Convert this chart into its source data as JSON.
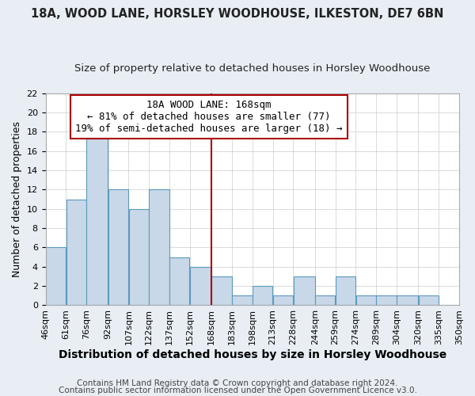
{
  "title": "18A, WOOD LANE, HORSLEY WOODHOUSE, ILKESTON, DE7 6BN",
  "subtitle": "Size of property relative to detached houses in Horsley Woodhouse",
  "xlabel": "Distribution of detached houses by size in Horsley Woodhouse",
  "ylabel": "Number of detached properties",
  "bin_edges": [
    46,
    61,
    76,
    92,
    107,
    122,
    137,
    152,
    168,
    183,
    198,
    213,
    228,
    244,
    259,
    274,
    289,
    304,
    320,
    335,
    350
  ],
  "bin_labels": [
    "46sqm",
    "61sqm",
    "76sqm",
    "92sqm",
    "107sqm",
    "122sqm",
    "137sqm",
    "152sqm",
    "168sqm",
    "183sqm",
    "198sqm",
    "213sqm",
    "228sqm",
    "244sqm",
    "259sqm",
    "274sqm",
    "289sqm",
    "304sqm",
    "320sqm",
    "335sqm",
    "350sqm"
  ],
  "counts": [
    6,
    11,
    18,
    12,
    10,
    12,
    5,
    4,
    3,
    1,
    2,
    1,
    3,
    1,
    3,
    1,
    1,
    1,
    1,
    0
  ],
  "bar_color": "#c8d8e8",
  "bar_edge_color": "#5a9abf",
  "reference_line_x": 168,
  "reference_line_color": "#aa0000",
  "annotation_title": "18A WOOD LANE: 168sqm",
  "annotation_line1": "← 81% of detached houses are smaller (77)",
  "annotation_line2": "19% of semi-detached houses are larger (18) →",
  "annotation_box_color": "#ffffff",
  "annotation_box_edge_color": "#aa0000",
  "ylim": [
    0,
    22
  ],
  "yticks": [
    0,
    2,
    4,
    6,
    8,
    10,
    12,
    14,
    16,
    18,
    20,
    22
  ],
  "footer1": "Contains HM Land Registry data © Crown copyright and database right 2024.",
  "footer2": "Contains public sector information licensed under the Open Government Licence v3.0.",
  "background_color": "#e8eef4",
  "plot_background_color": "#ffffff",
  "title_fontsize": 10.5,
  "subtitle_fontsize": 9.5,
  "xlabel_fontsize": 10,
  "ylabel_fontsize": 9,
  "tick_fontsize": 8,
  "annotation_fontsize": 9,
  "footer_fontsize": 7.5
}
